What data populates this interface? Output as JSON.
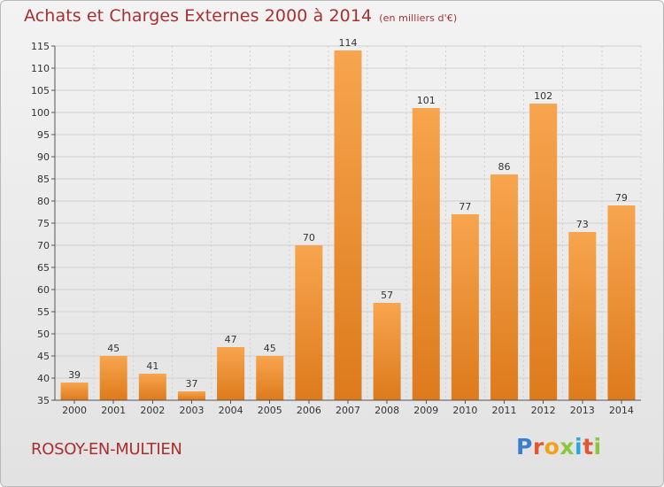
{
  "header": {
    "title": "Achats et Charges Externes 2000 à 2014",
    "subtitle": "(en milliers d'€)"
  },
  "footer": {
    "commune": "ROSOY-EN-MULTIEN",
    "brand": "Proxiti",
    "brand_colors": [
      "#3c7fd0",
      "#e4572e",
      "#f2a116",
      "#8cc63e",
      "#2aa9e0",
      "#e4572e",
      "#8cc63e"
    ]
  },
  "colors": {
    "bar_light": "#f7a54e",
    "bar_dark": "#dd7a1c",
    "grid": "#d0d0d0",
    "axis": "#555555"
  },
  "chart_data": {
    "type": "bar",
    "title": "Achats et Charges Externes 2000 à 2014",
    "subtitle": "(en milliers d'€)",
    "xlabel": "",
    "ylabel": "",
    "categories": [
      "2000",
      "2001",
      "2002",
      "2003",
      "2004",
      "2005",
      "2006",
      "2007",
      "2008",
      "2009",
      "2010",
      "2011",
      "2012",
      "2013",
      "2014"
    ],
    "values": [
      39,
      45,
      41,
      37,
      47,
      45,
      70,
      114,
      57,
      101,
      77,
      86,
      102,
      73,
      79
    ],
    "ylim": [
      35,
      115
    ],
    "yticks": [
      35,
      40,
      45,
      50,
      55,
      60,
      65,
      70,
      75,
      80,
      85,
      90,
      95,
      100,
      105,
      110,
      115
    ],
    "grid": true,
    "data_labels": true
  }
}
